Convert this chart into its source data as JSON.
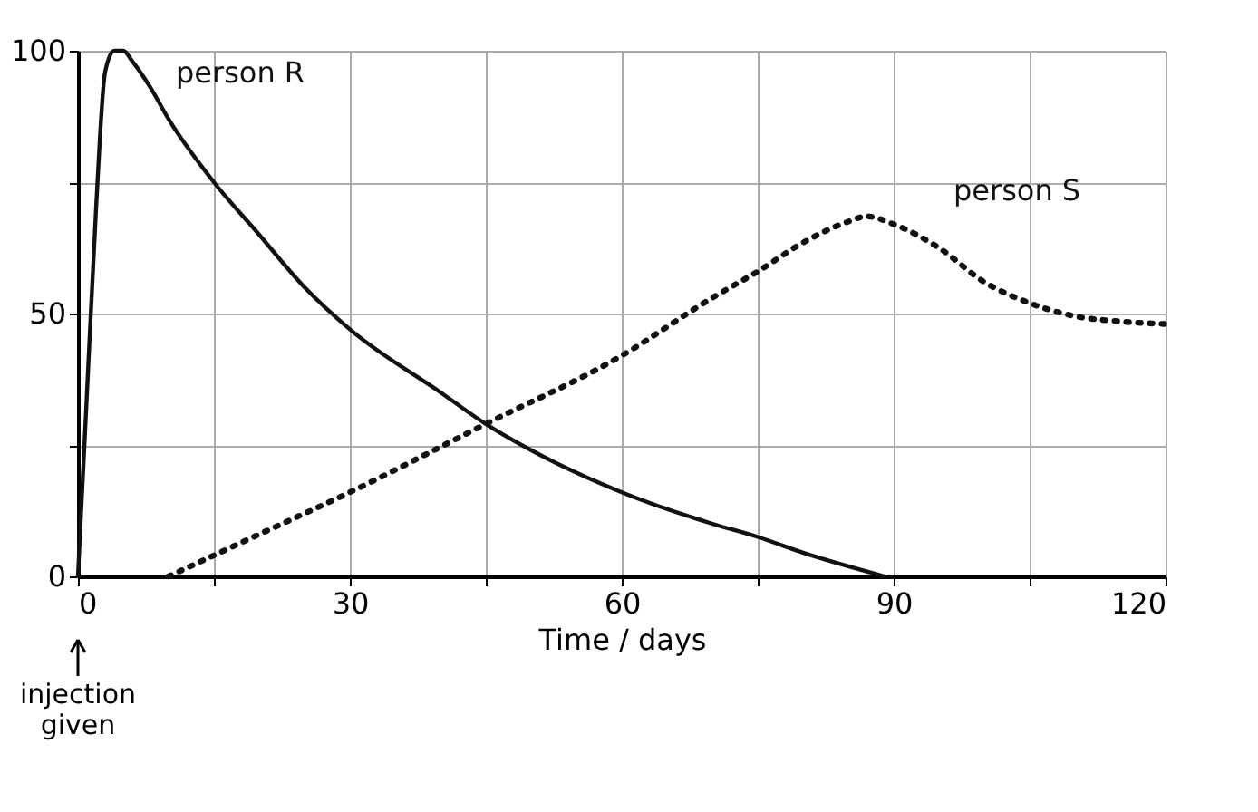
{
  "chart_data": {
    "type": "line",
    "xlabel": "Time / days",
    "xlim": [
      0,
      120
    ],
    "ylim": [
      0,
      100
    ],
    "xticks": [
      0,
      {
        "value": 15,
        "label": null
      },
      30,
      {
        "value": 45,
        "label": null
      },
      60,
      {
        "value": 75,
        "label": null
      },
      90,
      {
        "value": 105,
        "label": null
      },
      120
    ],
    "yticks": [
      0,
      {
        "value": 25,
        "label": null
      },
      50,
      {
        "value": 75,
        "label": null
      },
      100
    ],
    "grid": true,
    "legend": false,
    "marker": "none",
    "series": [
      {
        "name": "person R",
        "color": "#111111",
        "line_style": "solid",
        "x": [
          0,
          1,
          2,
          3,
          4,
          5,
          6,
          8,
          10,
          15,
          20,
          25,
          30,
          40,
          45,
          50,
          60,
          70,
          75,
          80,
          89
        ],
        "values": [
          0,
          35,
          70,
          96,
          100,
          100,
          98,
          93,
          87,
          75,
          65,
          55,
          47,
          35,
          29,
          24,
          16,
          10,
          7.5,
          4.5,
          0
        ]
      },
      {
        "name": "person S",
        "color": "#111111",
        "line_style": "dotted",
        "x": [
          10,
          20,
          30,
          45,
          60,
          70,
          75,
          80,
          85,
          87,
          90,
          95,
          100,
          105,
          110,
          115,
          120
        ],
        "values": [
          0,
          8,
          16,
          29,
          42,
          53,
          58,
          63.5,
          67.5,
          68.5,
          67,
          62.5,
          56,
          52,
          49.5,
          48.5,
          48
        ]
      }
    ],
    "annotations": [
      {
        "text": "injection given",
        "x": 0
      }
    ]
  }
}
